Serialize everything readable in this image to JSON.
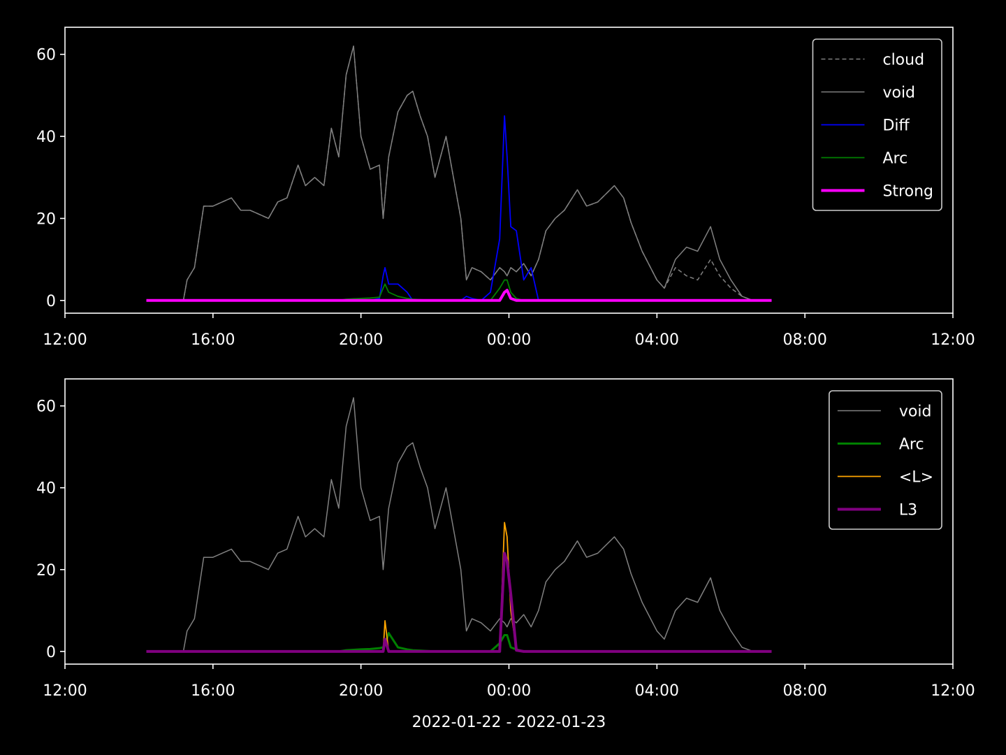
{
  "chart_data": [
    {
      "type": "line",
      "x": [
        14.2,
        15.0,
        15.2,
        15.3,
        15.5,
        15.75,
        16.0,
        16.25,
        16.5,
        16.75,
        17.0,
        17.25,
        17.5,
        17.75,
        18.0,
        18.3,
        18.5,
        18.75,
        19.0,
        19.2,
        19.4,
        19.6,
        19.8,
        20.0,
        20.25,
        20.5,
        20.6,
        20.65,
        20.75,
        21.0,
        21.25,
        21.4,
        21.6,
        21.8,
        22.0,
        22.3,
        22.5,
        22.7,
        22.85,
        23.0,
        23.25,
        23.5,
        23.75,
        23.88,
        23.95,
        24.05,
        24.2,
        24.4,
        24.6,
        24.8,
        25.0,
        25.25,
        25.5,
        25.85,
        26.1,
        26.4,
        26.85,
        27.1,
        27.3,
        27.6,
        28.0,
        28.2,
        28.5,
        28.8,
        29.1,
        29.45,
        29.7,
        30.0,
        30.3,
        30.6,
        31.1
      ],
      "xlim": [
        12,
        36
      ],
      "xticks": [
        {
          "value": 12,
          "label": "12:00"
        },
        {
          "value": 16,
          "label": "16:00"
        },
        {
          "value": 20,
          "label": "20:00"
        },
        {
          "value": 24,
          "label": "00:00"
        },
        {
          "value": 28,
          "label": "04:00"
        },
        {
          "value": 32,
          "label": "08:00"
        },
        {
          "value": 36,
          "label": "12:00"
        }
      ],
      "ylim": [
        -3.1,
        66.6
      ],
      "yticks": [
        0,
        20,
        40,
        60
      ],
      "legend": "upper right",
      "series": [
        {
          "name": "cloud",
          "color": "#808080",
          "linestyle": "dashed",
          "linewidth": 1.5,
          "values": [
            0,
            0,
            0,
            5,
            8,
            23,
            23,
            24,
            25,
            22,
            22,
            21,
            20,
            24,
            25,
            33,
            28,
            30,
            28,
            42,
            35,
            55,
            62,
            40,
            32,
            33,
            20,
            25,
            35,
            46,
            50,
            51,
            45,
            40,
            30,
            40,
            30,
            20,
            5,
            8,
            7,
            5,
            8,
            7,
            6,
            8,
            7,
            9,
            6,
            10,
            17,
            20,
            22,
            27,
            23,
            24,
            28,
            25,
            19,
            12,
            5,
            3,
            8,
            6,
            5,
            10,
            6,
            3,
            1,
            0,
            0
          ]
        },
        {
          "name": "void",
          "color": "#808080",
          "linestyle": "solid",
          "linewidth": 1.5,
          "values": [
            0,
            0,
            0,
            5,
            8,
            23,
            23,
            24,
            25,
            22,
            22,
            21,
            20,
            24,
            25,
            33,
            28,
            30,
            28,
            42,
            35,
            55,
            62,
            40,
            32,
            33,
            20,
            25,
            35,
            46,
            50,
            51,
            45,
            40,
            30,
            40,
            30,
            20,
            5,
            8,
            7,
            5,
            8,
            7,
            6,
            8,
            7,
            9,
            6,
            10,
            17,
            20,
            22,
            27,
            23,
            24,
            28,
            25,
            19,
            12,
            5,
            3,
            10,
            13,
            12,
            18,
            10,
            5,
            1,
            0,
            0
          ]
        },
        {
          "name": "Diff",
          "color": "#0000ff",
          "linestyle": "solid",
          "linewidth": 1.8,
          "values": [
            0,
            0,
            0,
            0,
            0,
            0,
            0,
            0,
            0,
            0,
            0,
            0,
            0,
            0,
            0,
            0,
            0,
            0,
            0,
            0,
            0,
            0,
            0,
            0,
            0,
            0.5,
            6,
            8,
            4,
            4,
            2,
            0,
            0,
            0,
            0,
            0,
            0,
            0,
            1,
            0.5,
            0,
            2,
            15,
            45,
            35,
            18,
            17,
            5,
            8,
            0,
            0,
            0,
            0,
            0,
            0,
            0,
            0,
            0,
            0,
            0,
            0,
            0,
            0,
            0,
            0,
            0,
            0,
            0,
            0,
            0,
            0
          ]
        },
        {
          "name": "Arc",
          "color": "#008000",
          "linestyle": "solid",
          "linewidth": 1.8,
          "values": [
            0,
            0,
            0,
            0,
            0,
            0,
            0,
            0,
            0,
            0,
            0,
            0,
            0,
            0,
            0,
            0,
            0,
            0,
            0,
            0,
            0,
            0.3,
            0.4,
            0.5,
            0.6,
            0.8,
            3,
            4,
            2,
            1,
            0.5,
            0.3,
            0.2,
            0.1,
            0,
            0,
            0,
            0,
            0,
            0,
            0,
            0,
            3,
            5,
            5,
            2,
            0.5,
            0,
            0,
            0,
            0,
            0,
            0,
            0,
            0,
            0,
            0,
            0,
            0,
            0,
            0,
            0,
            0,
            0,
            0,
            0,
            0,
            0,
            0,
            0,
            0
          ]
        },
        {
          "name": "Strong",
          "color": "#ff00ff",
          "linestyle": "solid",
          "linewidth": 4,
          "values": [
            0,
            0,
            0,
            0,
            0,
            0,
            0,
            0,
            0,
            0,
            0,
            0,
            0,
            0,
            0,
            0,
            0,
            0,
            0,
            0,
            0,
            0,
            0,
            0,
            0,
            0,
            0,
            0,
            0,
            0,
            0,
            0,
            0,
            0,
            0,
            0,
            0,
            0,
            0,
            0,
            0,
            0,
            0,
            2,
            2.5,
            0.5,
            0,
            0,
            0,
            0,
            0,
            0,
            0,
            0,
            0,
            0,
            0,
            0,
            0,
            0,
            0,
            0,
            0,
            0,
            0,
            0,
            0,
            0,
            0,
            0,
            0
          ]
        }
      ]
    },
    {
      "type": "line",
      "x": [
        14.2,
        15.0,
        15.2,
        15.3,
        15.5,
        15.75,
        16.0,
        16.25,
        16.5,
        16.75,
        17.0,
        17.25,
        17.5,
        17.75,
        18.0,
        18.3,
        18.5,
        18.75,
        19.0,
        19.2,
        19.4,
        19.6,
        19.8,
        20.0,
        20.25,
        20.5,
        20.6,
        20.65,
        20.75,
        21.0,
        21.25,
        21.4,
        21.6,
        21.8,
        22.0,
        22.3,
        22.5,
        22.7,
        22.85,
        23.0,
        23.25,
        23.5,
        23.75,
        23.88,
        23.95,
        24.05,
        24.2,
        24.4,
        24.6,
        24.8,
        25.0,
        25.25,
        25.5,
        25.85,
        26.1,
        26.4,
        26.85,
        27.1,
        27.3,
        27.6,
        28.0,
        28.2,
        28.5,
        28.8,
        29.1,
        29.45,
        29.7,
        30.0,
        30.3,
        30.6,
        31.1
      ],
      "xlim": [
        12,
        36
      ],
      "xticks": [
        {
          "value": 12,
          "label": "12:00"
        },
        {
          "value": 16,
          "label": "16:00"
        },
        {
          "value": 20,
          "label": "20:00"
        },
        {
          "value": 24,
          "label": "00:00"
        },
        {
          "value": 28,
          "label": "04:00"
        },
        {
          "value": 32,
          "label": "08:00"
        },
        {
          "value": 36,
          "label": "12:00"
        }
      ],
      "ylim": [
        -3.1,
        66.6
      ],
      "yticks": [
        0,
        20,
        40,
        60
      ],
      "x_label": "2022-01-22 - 2022-01-23",
      "legend": "upper right",
      "series": [
        {
          "name": "void",
          "color": "#808080",
          "linestyle": "solid",
          "linewidth": 1.5,
          "values": [
            0,
            0,
            0,
            5,
            8,
            23,
            23,
            24,
            25,
            22,
            22,
            21,
            20,
            24,
            25,
            33,
            28,
            30,
            28,
            42,
            35,
            55,
            62,
            40,
            32,
            33,
            20,
            25,
            35,
            46,
            50,
            51,
            45,
            40,
            30,
            40,
            30,
            20,
            5,
            8,
            7,
            5,
            8,
            7,
            6,
            8,
            7,
            9,
            6,
            10,
            17,
            20,
            22,
            27,
            23,
            24,
            28,
            25,
            19,
            12,
            5,
            3,
            10,
            13,
            12,
            18,
            10,
            5,
            1,
            0,
            0
          ]
        },
        {
          "name": "Arc",
          "color": "#008000",
          "linestyle": "solid",
          "linewidth": 3,
          "values": [
            0,
            0,
            0,
            0,
            0,
            0,
            0,
            0,
            0,
            0,
            0,
            0,
            0,
            0,
            0,
            0,
            0,
            0,
            0,
            0,
            0,
            0.3,
            0.4,
            0.5,
            0.6,
            0.8,
            1,
            1.5,
            4.5,
            1,
            0.5,
            0.3,
            0.2,
            0.1,
            0,
            0,
            0,
            0,
            0,
            0,
            0,
            0,
            2,
            4,
            4,
            1,
            0.5,
            0,
            0,
            0,
            0,
            0,
            0,
            0,
            0,
            0,
            0,
            0,
            0,
            0,
            0,
            0,
            0,
            0,
            0,
            0,
            0,
            0,
            0,
            0,
            0
          ]
        },
        {
          "name": "<L>",
          "color": "#ffa500",
          "linestyle": "solid",
          "linewidth": 1.8,
          "values": [
            0,
            0,
            0,
            0,
            0,
            0,
            0,
            0,
            0,
            0,
            0,
            0,
            0,
            0,
            0,
            0,
            0,
            0,
            0,
            0,
            0,
            0,
            0,
            0,
            0,
            0,
            0,
            7.5,
            0,
            0,
            0,
            0,
            0,
            0,
            0,
            0,
            0,
            0,
            0,
            0,
            0,
            0,
            0,
            31.5,
            28,
            10,
            0.5,
            0,
            0,
            0,
            0,
            0,
            0,
            0,
            0,
            0,
            0,
            0,
            0,
            0,
            0,
            0,
            0,
            0,
            0,
            0,
            0,
            0,
            0,
            0,
            0
          ]
        },
        {
          "name": "L3",
          "color": "#800080",
          "linestyle": "solid",
          "linewidth": 4,
          "values": [
            0,
            0,
            0,
            0,
            0,
            0,
            0,
            0,
            0,
            0,
            0,
            0,
            0,
            0,
            0,
            0,
            0,
            0,
            0,
            0,
            0,
            0,
            0,
            0,
            0,
            0,
            0,
            3,
            0,
            0,
            0,
            0,
            0,
            0,
            0,
            0,
            0,
            0,
            0,
            0,
            0,
            0,
            0,
            24,
            22,
            14,
            0.3,
            0,
            0,
            0,
            0,
            0,
            0,
            0,
            0,
            0,
            0,
            0,
            0,
            0,
            0,
            0,
            0,
            0,
            0,
            0,
            0,
            0,
            0,
            0,
            0
          ]
        }
      ]
    }
  ]
}
